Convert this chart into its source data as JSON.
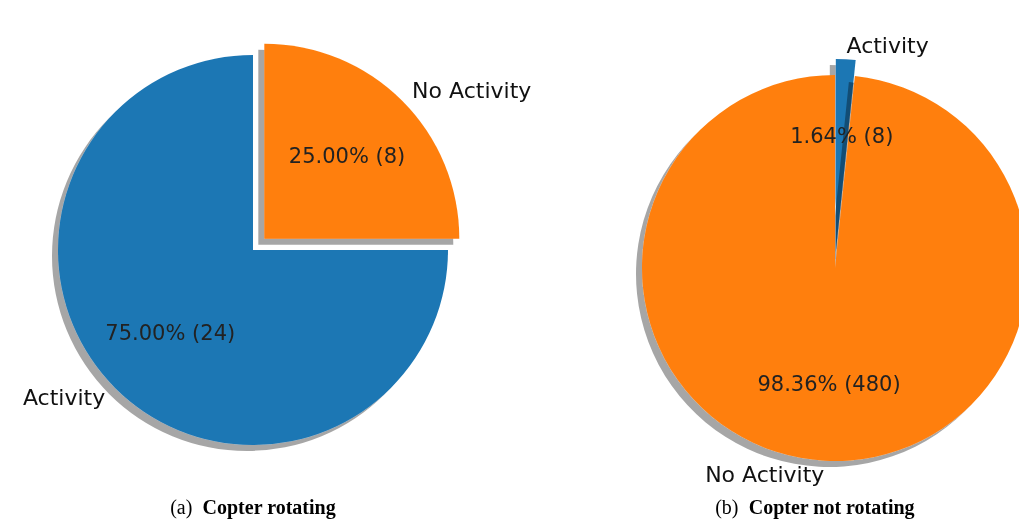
{
  "chart_data": [
    {
      "type": "pie",
      "title": "(a) Copter rotating",
      "categories": [
        "Activity",
        "No Activity"
      ],
      "values": [
        24,
        8
      ],
      "colors": [
        "#1f77b4",
        "#ff7f0e"
      ],
      "value_labels": [
        "75.00% (24)",
        "25.00% (8)"
      ]
    },
    {
      "type": "pie",
      "title": "(b) Copter not rotating",
      "categories": [
        "Activity",
        "No Activity"
      ],
      "values": [
        8,
        480
      ],
      "colors": [
        "#1f77b4",
        "#ff7f0e"
      ],
      "value_labels": [
        "1.64% (8)",
        "98.36% (480)"
      ]
    }
  ]
}
